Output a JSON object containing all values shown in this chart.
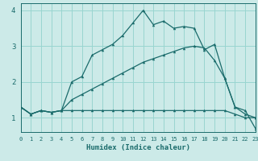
{
  "xlabel": "Humidex (Indice chaleur)",
  "background_color": "#cceae8",
  "grid_color": "#99d5d0",
  "line_color": "#1a6b6b",
  "xlim": [
    0,
    23
  ],
  "ylim": [
    0.6,
    4.2
  ],
  "yticks": [
    1,
    2,
    3,
    4
  ],
  "xticks": [
    0,
    1,
    2,
    3,
    4,
    5,
    6,
    7,
    8,
    9,
    10,
    11,
    12,
    13,
    14,
    15,
    16,
    17,
    18,
    19,
    20,
    21,
    22,
    23
  ],
  "s1_x": [
    0,
    1,
    2,
    3,
    4,
    5,
    6,
    7,
    8,
    9,
    10,
    11,
    12,
    13,
    14,
    15,
    16,
    17,
    18,
    19,
    20,
    21,
    22,
    23
  ],
  "s1_y": [
    1.3,
    1.1,
    1.2,
    1.15,
    1.2,
    2.0,
    2.15,
    2.75,
    2.9,
    3.05,
    3.3,
    3.65,
    4.0,
    3.6,
    3.7,
    3.5,
    3.55,
    3.5,
    2.9,
    3.05,
    2.1,
    1.3,
    1.2,
    0.7
  ],
  "s2_x": [
    0,
    1,
    2,
    3,
    4,
    5,
    6,
    7,
    8,
    9,
    10,
    11,
    12,
    13,
    14,
    15,
    16,
    17,
    18,
    19,
    20,
    21,
    22,
    23
  ],
  "s2_y": [
    1.3,
    1.1,
    1.2,
    1.15,
    1.2,
    1.5,
    1.65,
    1.8,
    1.95,
    2.1,
    2.25,
    2.4,
    2.55,
    2.65,
    2.75,
    2.85,
    2.95,
    3.0,
    2.95,
    2.6,
    2.1,
    1.3,
    1.1,
    1.0
  ],
  "s3_x": [
    0,
    1,
    2,
    3,
    4,
    5,
    6,
    7,
    8,
    9,
    10,
    11,
    12,
    13,
    14,
    15,
    16,
    17,
    18,
    19,
    20,
    21,
    22,
    23
  ],
  "s3_y": [
    1.3,
    1.1,
    1.2,
    1.15,
    1.2,
    1.2,
    1.2,
    1.2,
    1.2,
    1.2,
    1.2,
    1.2,
    1.2,
    1.2,
    1.2,
    1.2,
    1.2,
    1.2,
    1.2,
    1.2,
    1.2,
    1.1,
    1.0,
    1.0
  ]
}
